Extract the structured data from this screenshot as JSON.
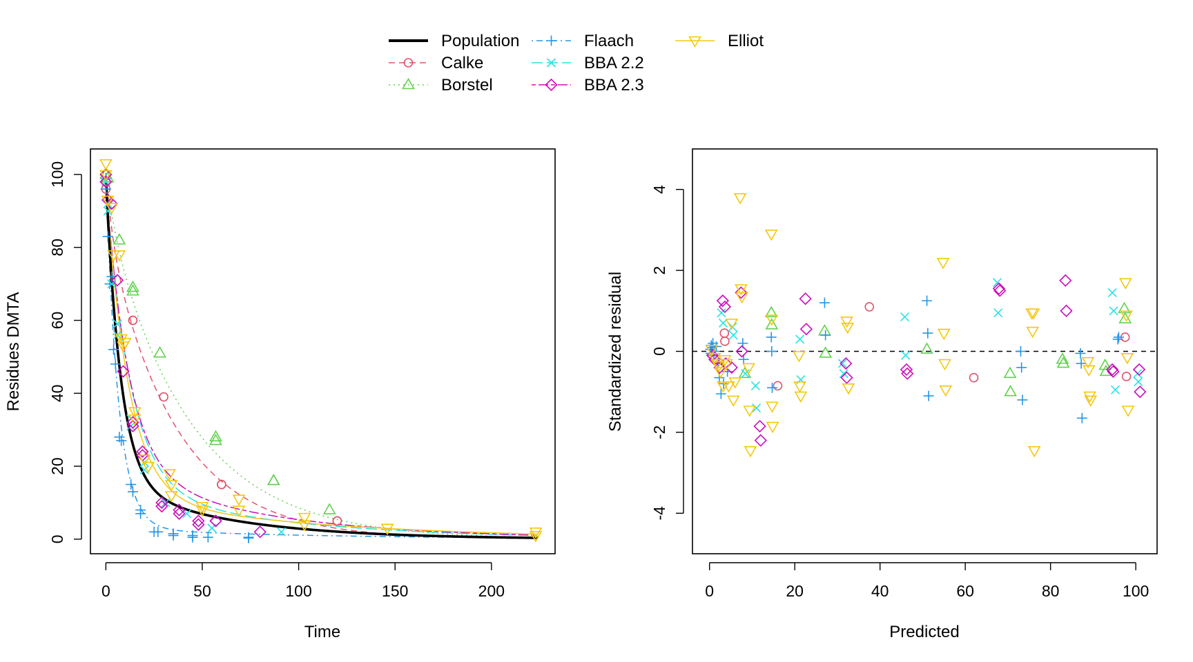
{
  "legend": {
    "placement": "top",
    "entries": [
      {
        "name": "Population",
        "color": "#000000",
        "marker": "none",
        "dash": "solid"
      },
      {
        "name": "Calke",
        "color": "#DF536B",
        "marker": "circle",
        "dash": "dashed"
      },
      {
        "name": "Borstel",
        "color": "#61D04F",
        "marker": "triangle-up",
        "dash": "dotted"
      },
      {
        "name": "Flaach",
        "color": "#2297E6",
        "marker": "plus",
        "dash": "dotdash"
      },
      {
        "name": "BBA 2.2",
        "color": "#28E2E5",
        "marker": "cross",
        "dash": "longdash"
      },
      {
        "name": "BBA 2.3",
        "color": "#CD0BBC",
        "marker": "diamond",
        "dash": "twodash"
      },
      {
        "name": "Elliot",
        "color": "#F5C710",
        "marker": "triangle-down",
        "dash": "solid"
      }
    ]
  },
  "chart_data": [
    {
      "type": "scatter",
      "xlabel": "Time",
      "ylabel": "Residues DMTA",
      "xlim": [
        -8,
        233
      ],
      "ylim": [
        -4,
        107
      ],
      "xticks": [
        0,
        50,
        100,
        150,
        200
      ],
      "yticks": [
        0,
        20,
        40,
        60,
        80,
        100
      ],
      "grid": false,
      "fitted_curves": [
        {
          "name": "Population",
          "model": "biexp",
          "params": [
            0.84,
            0.13,
            0.16,
            0.017,
            99
          ]
        },
        {
          "name": "Calke",
          "model": "biexp",
          "params": [
            0.15,
            0.25,
            0.85,
            0.028,
            100
          ]
        },
        {
          "name": "Borstel",
          "model": "biexp",
          "params": [
            0.1,
            0.2,
            0.9,
            0.0235,
            100
          ]
        },
        {
          "name": "Flaach",
          "model": "biexp",
          "params": [
            0.97,
            0.155,
            0.03,
            0.01,
            100
          ]
        },
        {
          "name": "BBA 2.2",
          "model": "biexp",
          "params": [
            0.85,
            0.08,
            0.15,
            0.012,
            98
          ]
        },
        {
          "name": "BBA 2.3",
          "model": "biexp",
          "params": [
            0.8,
            0.085,
            0.2,
            0.013,
            98
          ]
        },
        {
          "name": "Elliot",
          "model": "biexp",
          "params": [
            0.88,
            0.085,
            0.12,
            0.0095,
            98
          ]
        }
      ],
      "series": [
        {
          "name": "Calke",
          "x": [
            0,
            0,
            14,
            14,
            30,
            60,
            60,
            120,
            120
          ],
          "y": [
            96,
            98,
            60,
            60,
            39,
            15,
            15,
            5,
            5
          ]
        },
        {
          "name": "Borstel",
          "x": [
            0,
            1,
            7,
            14,
            14,
            28,
            57,
            57,
            87,
            87,
            116
          ],
          "y": [
            100,
            99,
            82,
            69,
            68,
            51,
            28,
            27,
            16,
            16,
            8
          ]
        },
        {
          "name": "Flaach",
          "x": [
            0,
            0,
            1,
            2,
            3,
            4,
            5,
            7,
            8,
            13,
            14,
            18,
            18,
            25,
            27,
            35,
            35,
            45,
            45,
            53,
            74,
            74
          ],
          "y": [
            96,
            99,
            83,
            70,
            72,
            52,
            48,
            28,
            27,
            15,
            13,
            8,
            7,
            2,
            2,
            1.5,
            1,
            1,
            0.5,
            0.5,
            0.5,
            0.3
          ]
        },
        {
          "name": "BBA 2.2",
          "x": [
            0,
            1,
            1,
            3,
            6,
            6,
            13,
            13,
            20,
            20,
            31,
            42,
            55,
            55,
            91
          ],
          "y": [
            98,
            92,
            90,
            70,
            59,
            56,
            33,
            31,
            21,
            19,
            10,
            7,
            3,
            3,
            2
          ]
        },
        {
          "name": "BBA 2.3",
          "x": [
            0,
            0,
            1,
            3,
            6,
            9,
            14,
            14,
            19,
            19,
            29,
            29,
            38,
            38,
            48,
            48,
            57,
            57,
            80
          ],
          "y": [
            100,
            98,
            93,
            92,
            71,
            46,
            31,
            32,
            23,
            24,
            10,
            9,
            8,
            7,
            5,
            4,
            5,
            5,
            2
          ]
        },
        {
          "name": "Elliot",
          "x": [
            0,
            0,
            1,
            3,
            4,
            7,
            8,
            9,
            10,
            15,
            15,
            20,
            22,
            33,
            34,
            34,
            50,
            50,
            69,
            69,
            103,
            103,
            146,
            146,
            223,
            223
          ],
          "y": [
            103,
            100,
            93,
            91,
            78,
            78,
            55,
            53,
            54,
            35,
            33,
            22,
            20,
            18,
            15,
            12,
            9,
            8,
            11,
            8,
            6,
            4,
            3,
            3,
            2,
            1
          ]
        }
      ]
    },
    {
      "type": "scatter",
      "xlabel": "Predicted",
      "ylabel": "Standardized residual",
      "xlim": [
        -4,
        105
      ],
      "ylim": [
        -5,
        5
      ],
      "xticks": [
        0,
        20,
        40,
        60,
        80,
        100
      ],
      "yticks": [
        -4,
        -2,
        0,
        2,
        4
      ],
      "grid": false,
      "reference_line": {
        "y": 0,
        "style": "dashed"
      },
      "series": [
        {
          "name": "Calke",
          "x": [
            3.5,
            3.6,
            16,
            37.5,
            62,
            97.5,
            97.8
          ],
          "y": [
            0.45,
            0.25,
            -0.85,
            1.1,
            -0.65,
            0.35,
            -0.62
          ]
        },
        {
          "name": "Borstel",
          "x": [
            8.3,
            14.5,
            14.6,
            27,
            27.2,
            51,
            70.5,
            70.6,
            82.8,
            83,
            92.8,
            93,
            97.3,
            97.5
          ],
          "y": [
            -0.55,
            0.95,
            0.65,
            0.5,
            -0.05,
            0.05,
            -0.55,
            -1.0,
            -0.2,
            -0.3,
            -0.35,
            -0.5,
            1.05,
            0.8
          ]
        },
        {
          "name": "Flaach",
          "x": [
            0.2,
            0.3,
            0.4,
            0.5,
            0.6,
            0.8,
            1.0,
            1.2,
            1.6,
            2.0,
            2.3,
            2.7,
            3.3,
            4.2,
            7.8,
            8.0,
            14.5,
            14.6,
            14.7,
            27,
            27.2,
            51,
            51.2,
            51.4,
            73,
            73.2,
            73.4,
            87,
            87.2,
            87.4,
            95.8,
            96
          ],
          "y": [
            0.05,
            -0.05,
            0.15,
            -0.1,
            0.1,
            0.2,
            -0.1,
            0.0,
            0.12,
            -0.3,
            -0.65,
            -1.05,
            -0.8,
            -0.5,
            0.2,
            -0.2,
            0.35,
            0.0,
            -0.9,
            1.2,
            0.4,
            1.25,
            0.45,
            -1.1,
            0.0,
            -0.4,
            -1.2,
            -0.05,
            -0.3,
            -1.65,
            0.3,
            0.35
          ]
        },
        {
          "name": "BBA 2.2",
          "x": [
            2.8,
            3.2,
            5.4,
            5.6,
            8.4,
            10.8,
            11,
            21.2,
            21.4,
            31.2,
            31.5,
            45.8,
            46,
            67.5,
            67.7,
            94.5,
            94.8,
            95.2,
            100.4,
            100.6
          ],
          "y": [
            0.95,
            0.7,
            0.6,
            0.4,
            -0.55,
            -0.85,
            -1.4,
            0.3,
            -0.7,
            -0.3,
            -0.55,
            0.85,
            -0.1,
            1.7,
            0.95,
            1.45,
            1.0,
            -0.95,
            -0.55,
            -0.75
          ]
        },
        {
          "name": "BBA 2.3",
          "x": [
            0.7,
            1.2,
            2.4,
            3.1,
            3.6,
            3.8,
            5.2,
            7.4,
            7.6,
            11.8,
            12,
            22.5,
            22.7,
            32,
            32.2,
            46.2,
            46.4,
            67.9,
            68.1,
            83.5,
            83.7,
            94.5,
            94.7,
            100.8,
            101
          ],
          "y": [
            -0.1,
            -0.2,
            -0.4,
            1.25,
            1.1,
            -0.3,
            -0.4,
            1.45,
            0.0,
            -1.85,
            -2.2,
            1.3,
            0.55,
            -0.3,
            -0.65,
            -0.45,
            -0.55,
            1.55,
            1.5,
            1.75,
            1.0,
            -0.45,
            -0.5,
            -0.45,
            -1.0
          ]
        },
        {
          "name": "Elliot",
          "x": [
            0.5,
            1.2,
            1.8,
            2.2,
            2.6,
            3.2,
            3.6,
            4.0,
            4.5,
            5.2,
            5.6,
            6.0,
            7.2,
            7.4,
            7.6,
            9.2,
            9.4,
            9.6,
            14.5,
            14.6,
            14.7,
            14.8,
            21,
            21.2,
            21.4,
            32.2,
            32.4,
            32.6,
            54.8,
            55,
            55.2,
            55.4,
            75.6,
            75.8,
            76,
            76.2,
            88.8,
            89,
            89.2,
            89.4,
            97.6,
            97.8,
            98,
            98.2
          ],
          "y": [
            0.05,
            -0.15,
            -0.3,
            -0.35,
            -0.5,
            -0.85,
            -0.2,
            -0.3,
            -0.85,
            0.7,
            -1.2,
            -0.75,
            3.8,
            1.55,
            1.35,
            -0.4,
            -1.45,
            -2.45,
            2.9,
            0.8,
            -1.35,
            -1.85,
            -0.1,
            -0.85,
            -1.1,
            0.75,
            0.6,
            -0.9,
            2.2,
            0.45,
            -0.3,
            -0.95,
            0.95,
            0.5,
            0.95,
            -2.45,
            -0.25,
            -0.45,
            -1.1,
            -1.2,
            1.7,
            0.9,
            -0.15,
            -1.45
          ]
        }
      ]
    }
  ]
}
